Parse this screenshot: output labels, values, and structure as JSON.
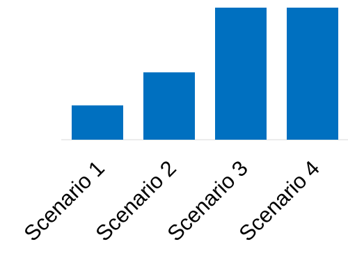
{
  "chart_data": {
    "type": "bar",
    "categories": [
      "Scenario 1",
      "Scenario 2",
      "Scenario 3",
      "Scenario 4"
    ],
    "values": [
      26,
      51,
      100,
      100
    ],
    "title": "",
    "xlabel": "",
    "ylabel": "",
    "ylim": [
      0,
      100
    ],
    "grid": false,
    "legend": "none",
    "colors": {
      "bar": "#0070c0",
      "baseline": "#e6e6e6",
      "text": "#000000"
    }
  }
}
